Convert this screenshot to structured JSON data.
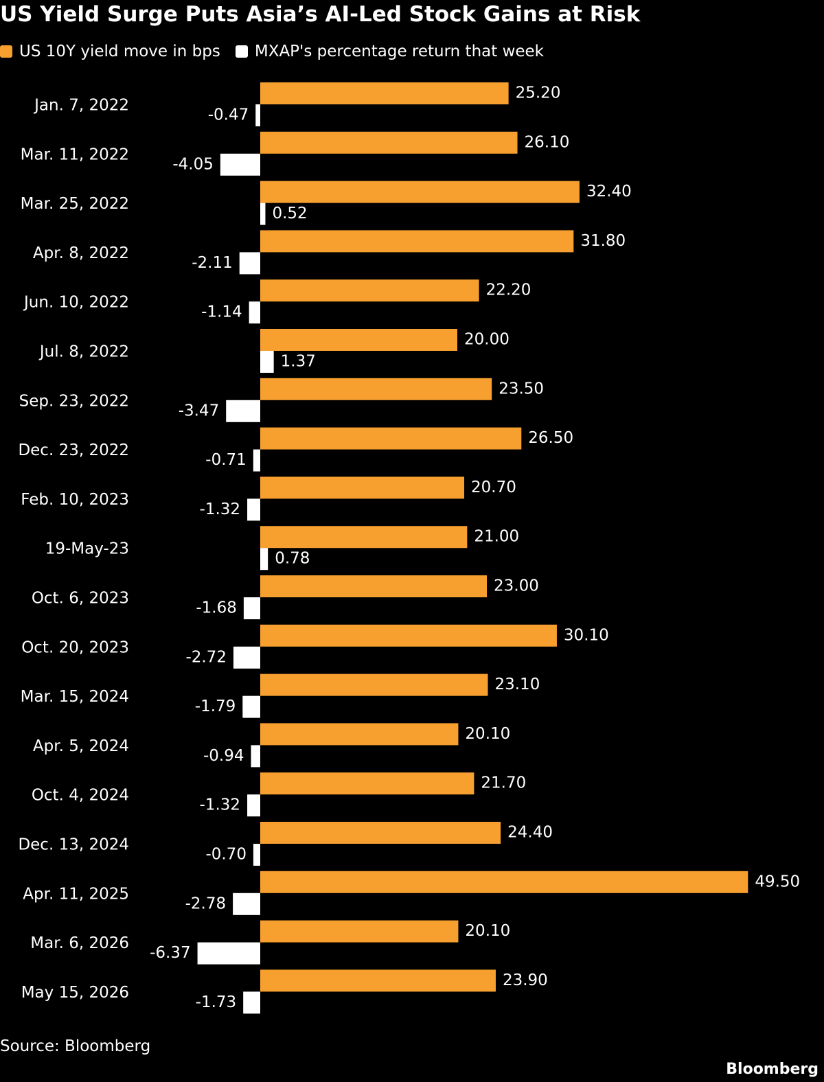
{
  "header": {
    "title": "US Yield Surge Puts Asia’s AI-Led Stock Gains at Risk"
  },
  "legend": [
    {
      "label": "US 10Y yield move in bps",
      "color": "#f7a02f"
    },
    {
      "label": "MXAP's percentage return that week",
      "color": "#ffffff"
    }
  ],
  "footer": {
    "source": "Source: Bloomberg",
    "brand": "Bloomberg"
  },
  "colors": {
    "background": "#000000",
    "yield_bar": "#f7a02f",
    "return_bar": "#ffffff",
    "text": "#ffffff"
  },
  "chart_data": {
    "type": "bar",
    "orientation": "horizontal",
    "title": "US Yield Surge Puts Asia’s AI-Led Stock Gains at Risk",
    "xlabel": "",
    "ylabel": "",
    "grid": false,
    "legend_position": "top-left",
    "xlim": [
      -6.37,
      49.5
    ],
    "categories": [
      "Jan. 7, 2022",
      "Mar. 11, 2022",
      "Mar. 25, 2022",
      "Apr. 8, 2022",
      "Jun. 10, 2022",
      "Jul. 8, 2022",
      "Sep. 23, 2022",
      "Dec. 23, 2022",
      "Feb. 10, 2023",
      "19-May-23",
      "Oct. 6, 2023",
      "Oct. 20, 2023",
      "Mar. 15, 2024",
      "Apr. 5, 2024",
      "Oct. 4, 2024",
      "Dec. 13, 2024",
      "Apr. 11, 2025",
      "Mar. 6, 2026",
      "May 15, 2026"
    ],
    "series": [
      {
        "name": "US 10Y yield move in bps",
        "color": "#f7a02f",
        "values": [
          25.2,
          26.1,
          32.4,
          31.8,
          22.2,
          20.0,
          23.5,
          26.5,
          20.7,
          21.0,
          23.0,
          30.1,
          23.1,
          20.1,
          21.7,
          24.4,
          49.5,
          20.1,
          23.9
        ],
        "labels": [
          "25.20",
          "26.10",
          "32.40",
          "31.80",
          "22.20",
          "20.00",
          "23.50",
          "26.50",
          "20.70",
          "21.00",
          "23.00",
          "30.10",
          "23.10",
          "20.10",
          "21.70",
          "24.40",
          "49.50",
          "20.10",
          "23.90"
        ]
      },
      {
        "name": "MXAP's percentage return that week",
        "color": "#ffffff",
        "values": [
          -0.47,
          -4.05,
          0.52,
          -2.11,
          -1.14,
          1.37,
          -3.47,
          -0.71,
          -1.32,
          0.78,
          -1.68,
          -2.72,
          -1.79,
          -0.94,
          -1.32,
          -0.7,
          -2.78,
          -6.37,
          -1.73
        ],
        "labels": [
          "-0.47",
          "-4.05",
          "0.52",
          "-2.11",
          "-1.14",
          "1.37",
          "-3.47",
          "-0.71",
          "-1.32",
          "0.78",
          "-1.68",
          "-2.72",
          "-1.79",
          "-0.94",
          "-1.32",
          "-0.70",
          "-2.78",
          "-6.37",
          "-1.73"
        ]
      }
    ]
  }
}
